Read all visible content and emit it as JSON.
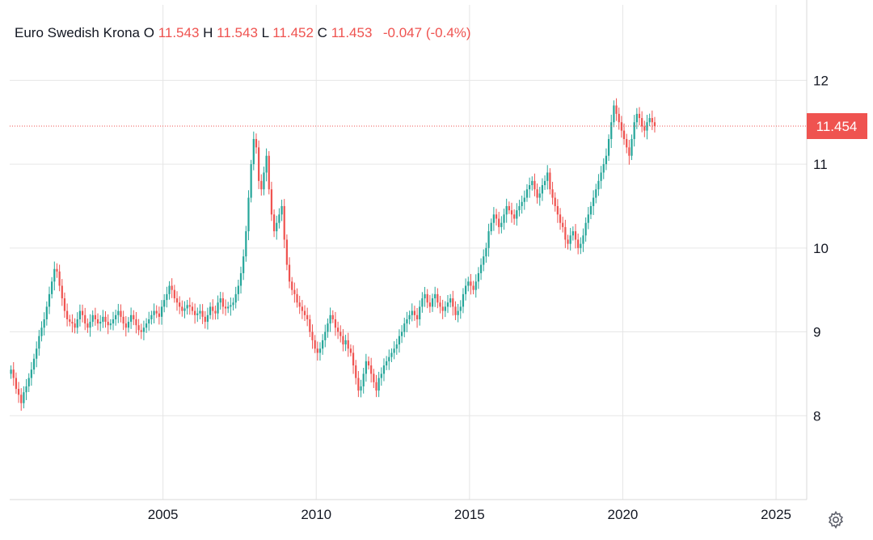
{
  "legend": {
    "symbol": "Euro Swedish Krona",
    "open_label": "O",
    "open": "11.543",
    "high_label": "H",
    "high": "11.543",
    "low_label": "L",
    "low": "11.452",
    "close_label": "C",
    "close": "11.453",
    "change": "-0.047",
    "change_pct": "(-0.4%)"
  },
  "price_tag": "11.454",
  "icons": {
    "settings": "gear-icon"
  },
  "colors": {
    "up": "#26a69a",
    "down": "#ef5350",
    "grid": "#e6e6e6",
    "text": "#131722",
    "price_line": "#ef5350"
  },
  "chart_data": {
    "type": "candlestick",
    "title": "Euro Swedish Krona",
    "xlabel": "",
    "ylabel": "",
    "x_ticks": [
      "2005",
      "2010",
      "2015",
      "2020",
      "2025"
    ],
    "y_ticks": [
      8,
      9,
      10,
      11,
      12
    ],
    "xlim": [
      "2000-01",
      "2025-12"
    ],
    "ylim": [
      7.0,
      12.9
    ],
    "grid": true,
    "last_price": 11.454,
    "last_bar": {
      "open": 11.543,
      "high": 11.543,
      "low": 11.452,
      "close": 11.453,
      "change": -0.047,
      "change_pct": -0.4
    },
    "series": [
      {
        "name": "Euro Swedish Krona",
        "interval": "monthly",
        "start": "2000-01",
        "close": [
          8.55,
          8.45,
          8.32,
          8.25,
          8.15,
          8.28,
          8.35,
          8.45,
          8.55,
          8.68,
          8.8,
          8.95,
          9.05,
          9.15,
          9.3,
          9.45,
          9.6,
          9.75,
          9.72,
          9.55,
          9.4,
          9.25,
          9.15,
          9.12,
          9.1,
          9.05,
          9.15,
          9.25,
          9.2,
          9.1,
          9.05,
          9.12,
          9.2,
          9.15,
          9.1,
          9.12,
          9.18,
          9.12,
          9.08,
          9.1,
          9.15,
          9.2,
          9.25,
          9.18,
          9.1,
          9.05,
          9.12,
          9.2,
          9.15,
          9.08,
          9.02,
          9.0,
          9.05,
          9.1,
          9.15,
          9.2,
          9.25,
          9.22,
          9.18,
          9.3,
          9.38,
          9.45,
          9.55,
          9.5,
          9.4,
          9.35,
          9.3,
          9.25,
          9.28,
          9.32,
          9.3,
          9.25,
          9.2,
          9.22,
          9.25,
          9.18,
          9.12,
          9.2,
          9.3,
          9.25,
          9.22,
          9.35,
          9.4,
          9.3,
          9.28,
          9.3,
          9.32,
          9.35,
          9.45,
          9.55,
          9.7,
          9.9,
          10.2,
          10.6,
          11.0,
          11.3,
          11.2,
          10.8,
          10.7,
          10.9,
          11.1,
          10.7,
          10.4,
          10.2,
          10.3,
          10.4,
          10.5,
          10.1,
          9.8,
          9.6,
          9.5,
          9.45,
          9.35,
          9.3,
          9.25,
          9.2,
          9.15,
          9.0,
          8.9,
          8.8,
          8.75,
          8.8,
          8.9,
          9.0,
          9.1,
          9.2,
          9.15,
          9.05,
          9.0,
          8.95,
          8.85,
          8.9,
          8.8,
          8.75,
          8.6,
          8.45,
          8.3,
          8.35,
          8.5,
          8.65,
          8.6,
          8.5,
          8.4,
          8.3,
          8.45,
          8.5,
          8.6,
          8.65,
          8.7,
          8.75,
          8.8,
          8.85,
          8.95,
          9.0,
          9.1,
          9.15,
          9.2,
          9.25,
          9.2,
          9.15,
          9.3,
          9.4,
          9.45,
          9.35,
          9.3,
          9.4,
          9.45,
          9.35,
          9.3,
          9.25,
          9.3,
          9.35,
          9.4,
          9.3,
          9.2,
          9.25,
          9.3,
          9.45,
          9.55,
          9.6,
          9.55,
          9.5,
          9.6,
          9.7,
          9.8,
          9.9,
          10.0,
          10.2,
          10.3,
          10.4,
          10.35,
          10.25,
          10.3,
          10.4,
          10.5,
          10.45,
          10.4,
          10.35,
          10.45,
          10.5,
          10.55,
          10.6,
          10.7,
          10.75,
          10.8,
          10.7,
          10.6,
          10.65,
          10.75,
          10.8,
          10.9,
          10.7,
          10.6,
          10.5,
          10.4,
          10.3,
          10.25,
          10.1,
          10.05,
          10.15,
          10.2,
          10.1,
          10.0,
          10.05,
          10.15,
          10.3,
          10.4,
          10.5,
          10.6,
          10.7,
          10.8,
          10.9,
          11.0,
          11.1,
          11.3,
          11.5,
          11.7,
          11.6,
          11.5,
          11.4,
          11.3,
          11.2,
          11.1,
          11.3,
          11.5,
          11.6,
          11.55,
          11.45,
          11.4,
          11.5,
          11.55,
          11.5,
          11.454
        ]
      }
    ]
  }
}
